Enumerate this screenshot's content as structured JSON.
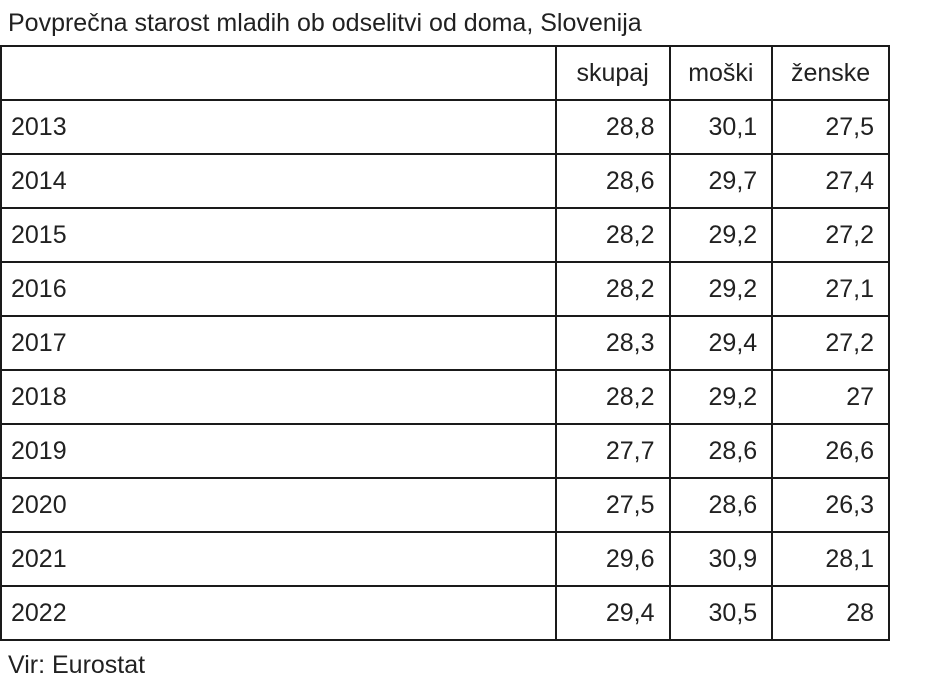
{
  "title": "Povprečna starost mladih ob odselitvi od doma, Slovenija",
  "source": "Vir: Eurostat",
  "chart_data": {
    "type": "table",
    "title": "Povprečna starost mladih ob odselitvi od doma, Slovenija",
    "columns": [
      "",
      "skupaj",
      "moški",
      "ženske"
    ],
    "decimal_separator": ",",
    "rows": [
      {
        "year": "2013",
        "skupaj": "28,8",
        "moski": "30,1",
        "zenske": "27,5"
      },
      {
        "year": "2014",
        "skupaj": "28,6",
        "moski": "29,7",
        "zenske": "27,4"
      },
      {
        "year": "2015",
        "skupaj": "28,2",
        "moski": "29,2",
        "zenske": "27,2"
      },
      {
        "year": "2016",
        "skupaj": "28,2",
        "moski": "29,2",
        "zenske": "27,1"
      },
      {
        "year": "2017",
        "skupaj": "28,3",
        "moski": "29,4",
        "zenske": "27,2"
      },
      {
        "year": "2018",
        "skupaj": "28,2",
        "moski": "29,2",
        "zenske": "27"
      },
      {
        "year": "2019",
        "skupaj": "27,7",
        "moski": "28,6",
        "zenske": "26,6"
      },
      {
        "year": "2020",
        "skupaj": "27,5",
        "moski": "28,6",
        "zenske": "26,3"
      },
      {
        "year": "2021",
        "skupaj": "29,6",
        "moski": "30,9",
        "zenske": "28,1"
      },
      {
        "year": "2022",
        "skupaj": "29,4",
        "moski": "30,5",
        "zenske": "28"
      }
    ],
    "series_numeric": [
      {
        "name": "skupaj",
        "values": [
          28.8,
          28.6,
          28.2,
          28.2,
          28.3,
          28.2,
          27.7,
          27.5,
          29.6,
          29.4
        ]
      },
      {
        "name": "moški",
        "values": [
          30.1,
          29.7,
          29.2,
          29.2,
          29.4,
          29.2,
          28.6,
          28.6,
          30.9,
          30.5
        ]
      },
      {
        "name": "ženske",
        "values": [
          27.5,
          27.4,
          27.2,
          27.1,
          27.2,
          27.0,
          26.6,
          26.3,
          28.1,
          28.0
        ]
      }
    ],
    "x_categories": [
      "2013",
      "2014",
      "2015",
      "2016",
      "2017",
      "2018",
      "2019",
      "2020",
      "2021",
      "2022"
    ],
    "colors": {
      "text": "#212121",
      "border": "#1a1a1a",
      "background": "#ffffff"
    }
  }
}
